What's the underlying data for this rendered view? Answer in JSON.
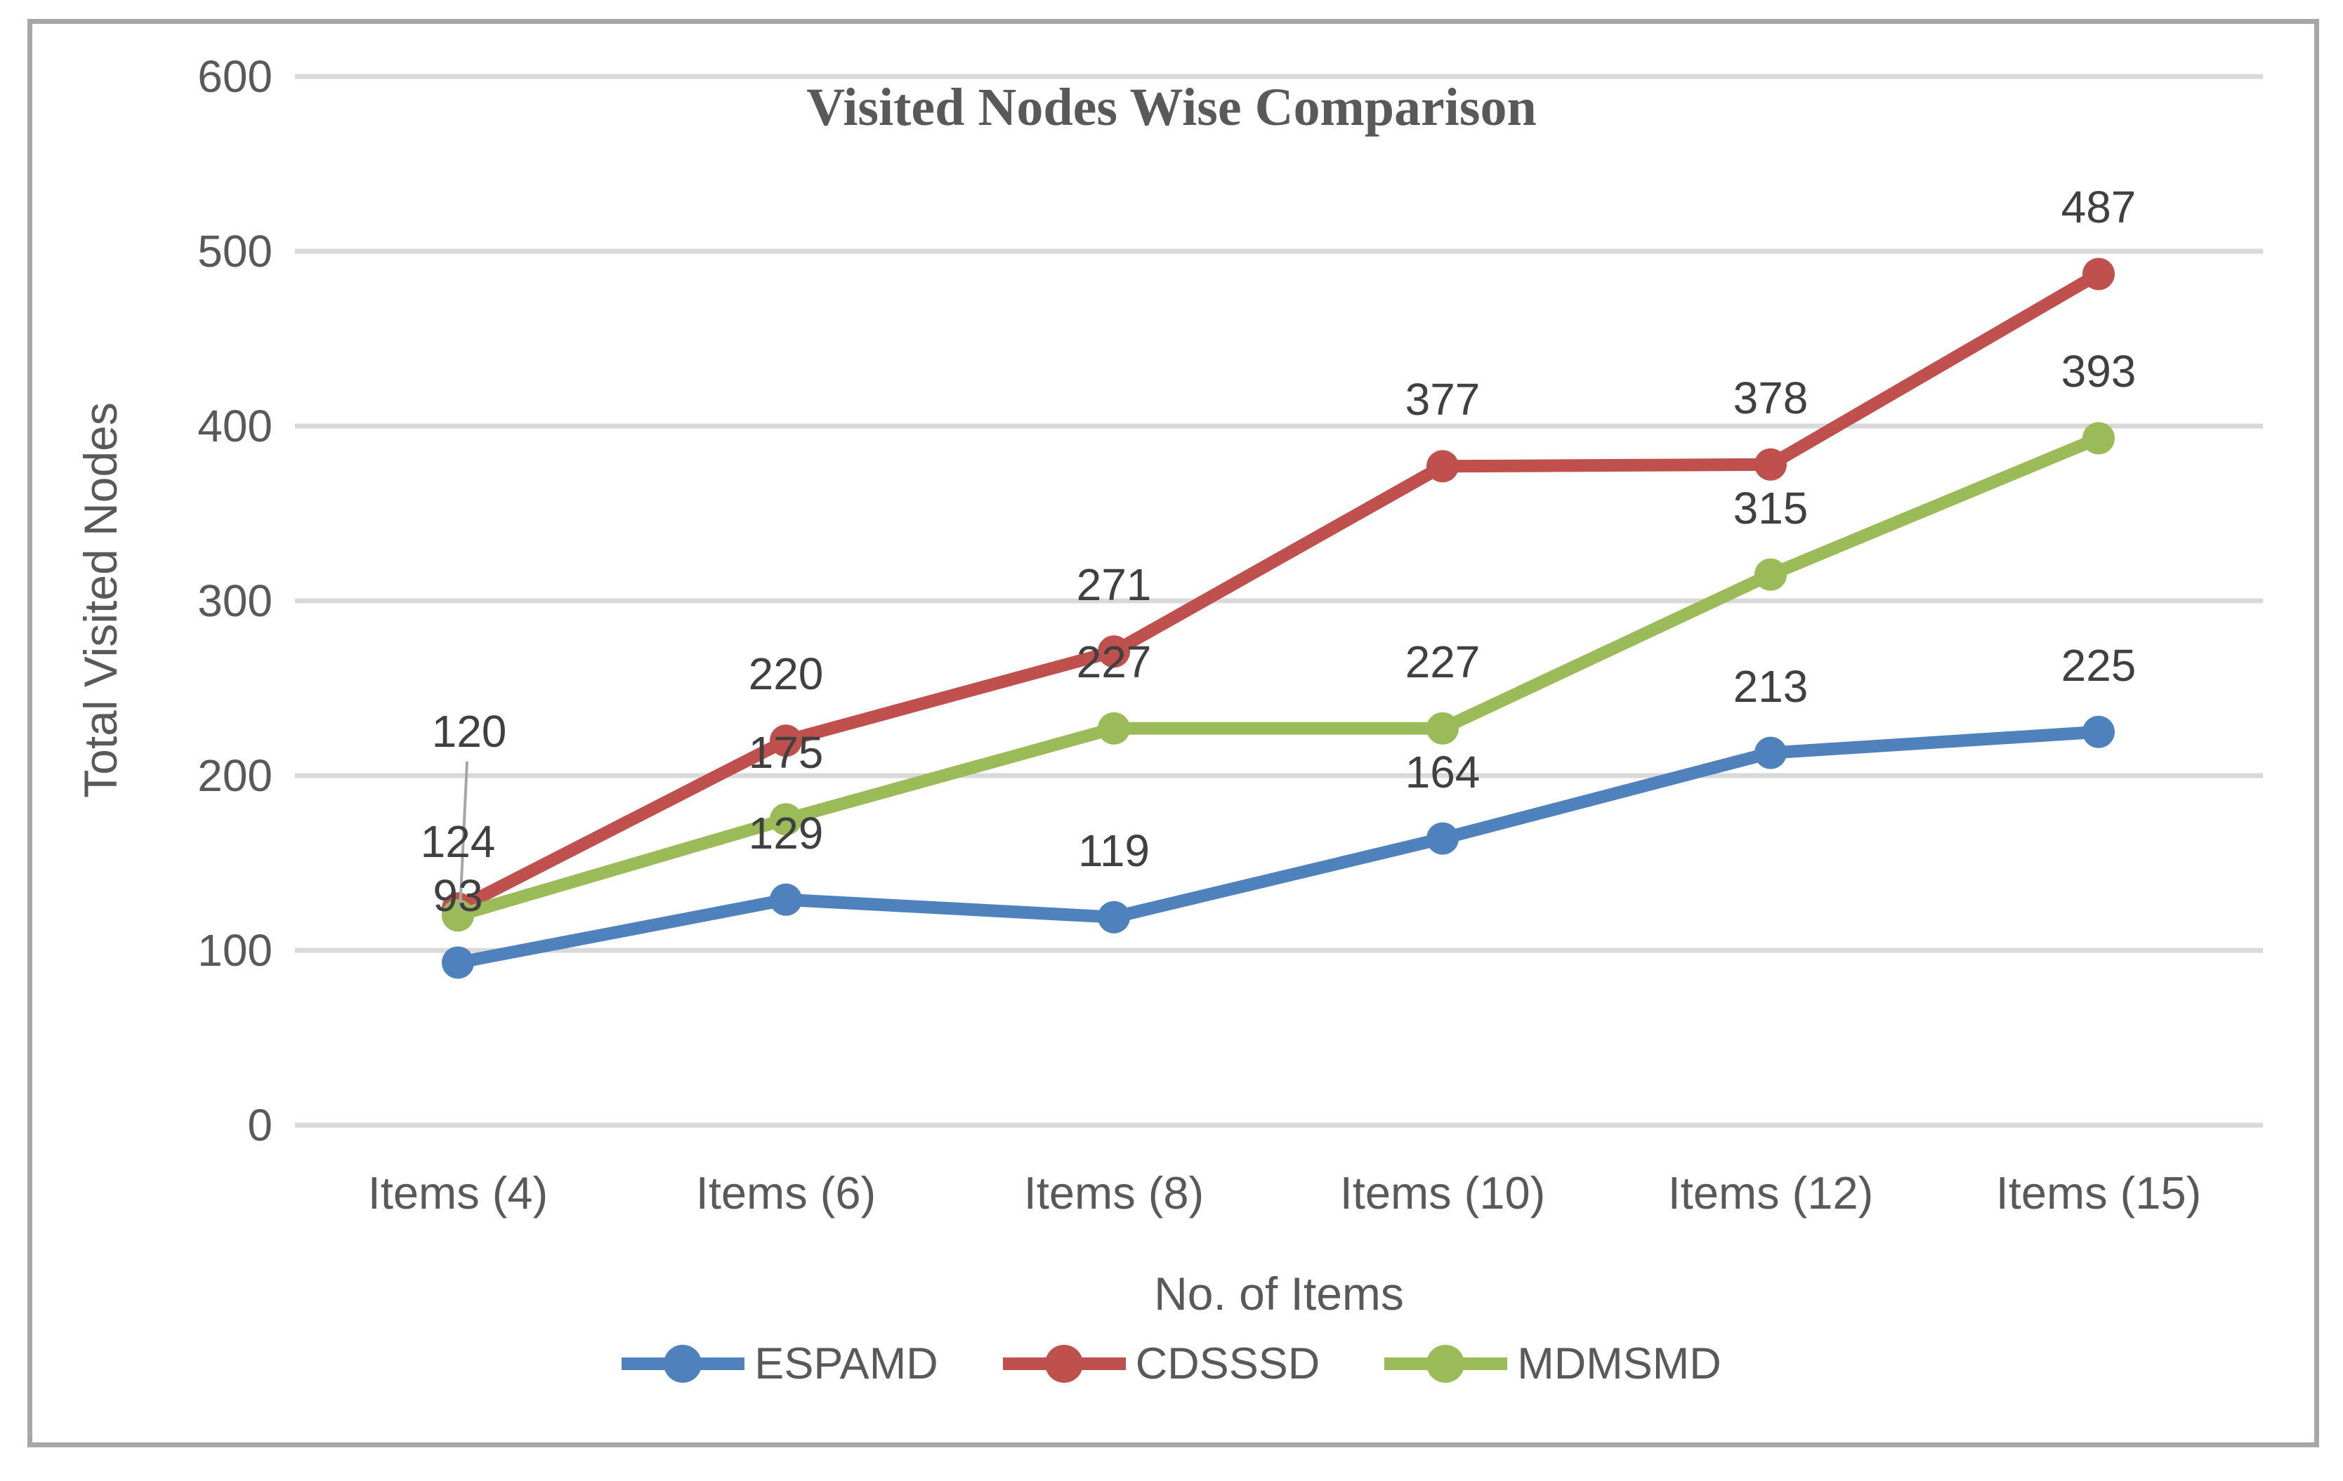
{
  "chart_data": {
    "type": "line",
    "title": "Visited Nodes Wise Comparison",
    "xlabel": "No. of Items",
    "ylabel": "Total Visited Nodes",
    "categories": [
      "Items (4)",
      "Items (6)",
      "Items (8)",
      "Items (10)",
      "Items (12)",
      "Items (15)"
    ],
    "series": [
      {
        "name": "ESPAMD",
        "color": "#4F81BD",
        "values": [
          93,
          129,
          119,
          164,
          213,
          225
        ]
      },
      {
        "name": "CDSSSD",
        "color": "#C0504D",
        "values": [
          124,
          220,
          271,
          377,
          378,
          487
        ]
      },
      {
        "name": "MDMSMD",
        "color": "#9BBB59",
        "values": [
          120,
          175,
          227,
          227,
          315,
          393
        ]
      }
    ],
    "ylim": [
      0,
      600
    ],
    "yticks": [
      0,
      100,
      200,
      300,
      400,
      500,
      600
    ],
    "grid": "horizontal",
    "legend_position": "bottom",
    "data_labels": true,
    "marker": "circle"
  },
  "palette": {
    "axis_text": "#595959",
    "data_label_text": "#404040",
    "gridline": "#D9D9D9",
    "chart_border": "#A6A6A6",
    "leader_line": "#A6A6A6",
    "background": "#FFFFFF"
  }
}
